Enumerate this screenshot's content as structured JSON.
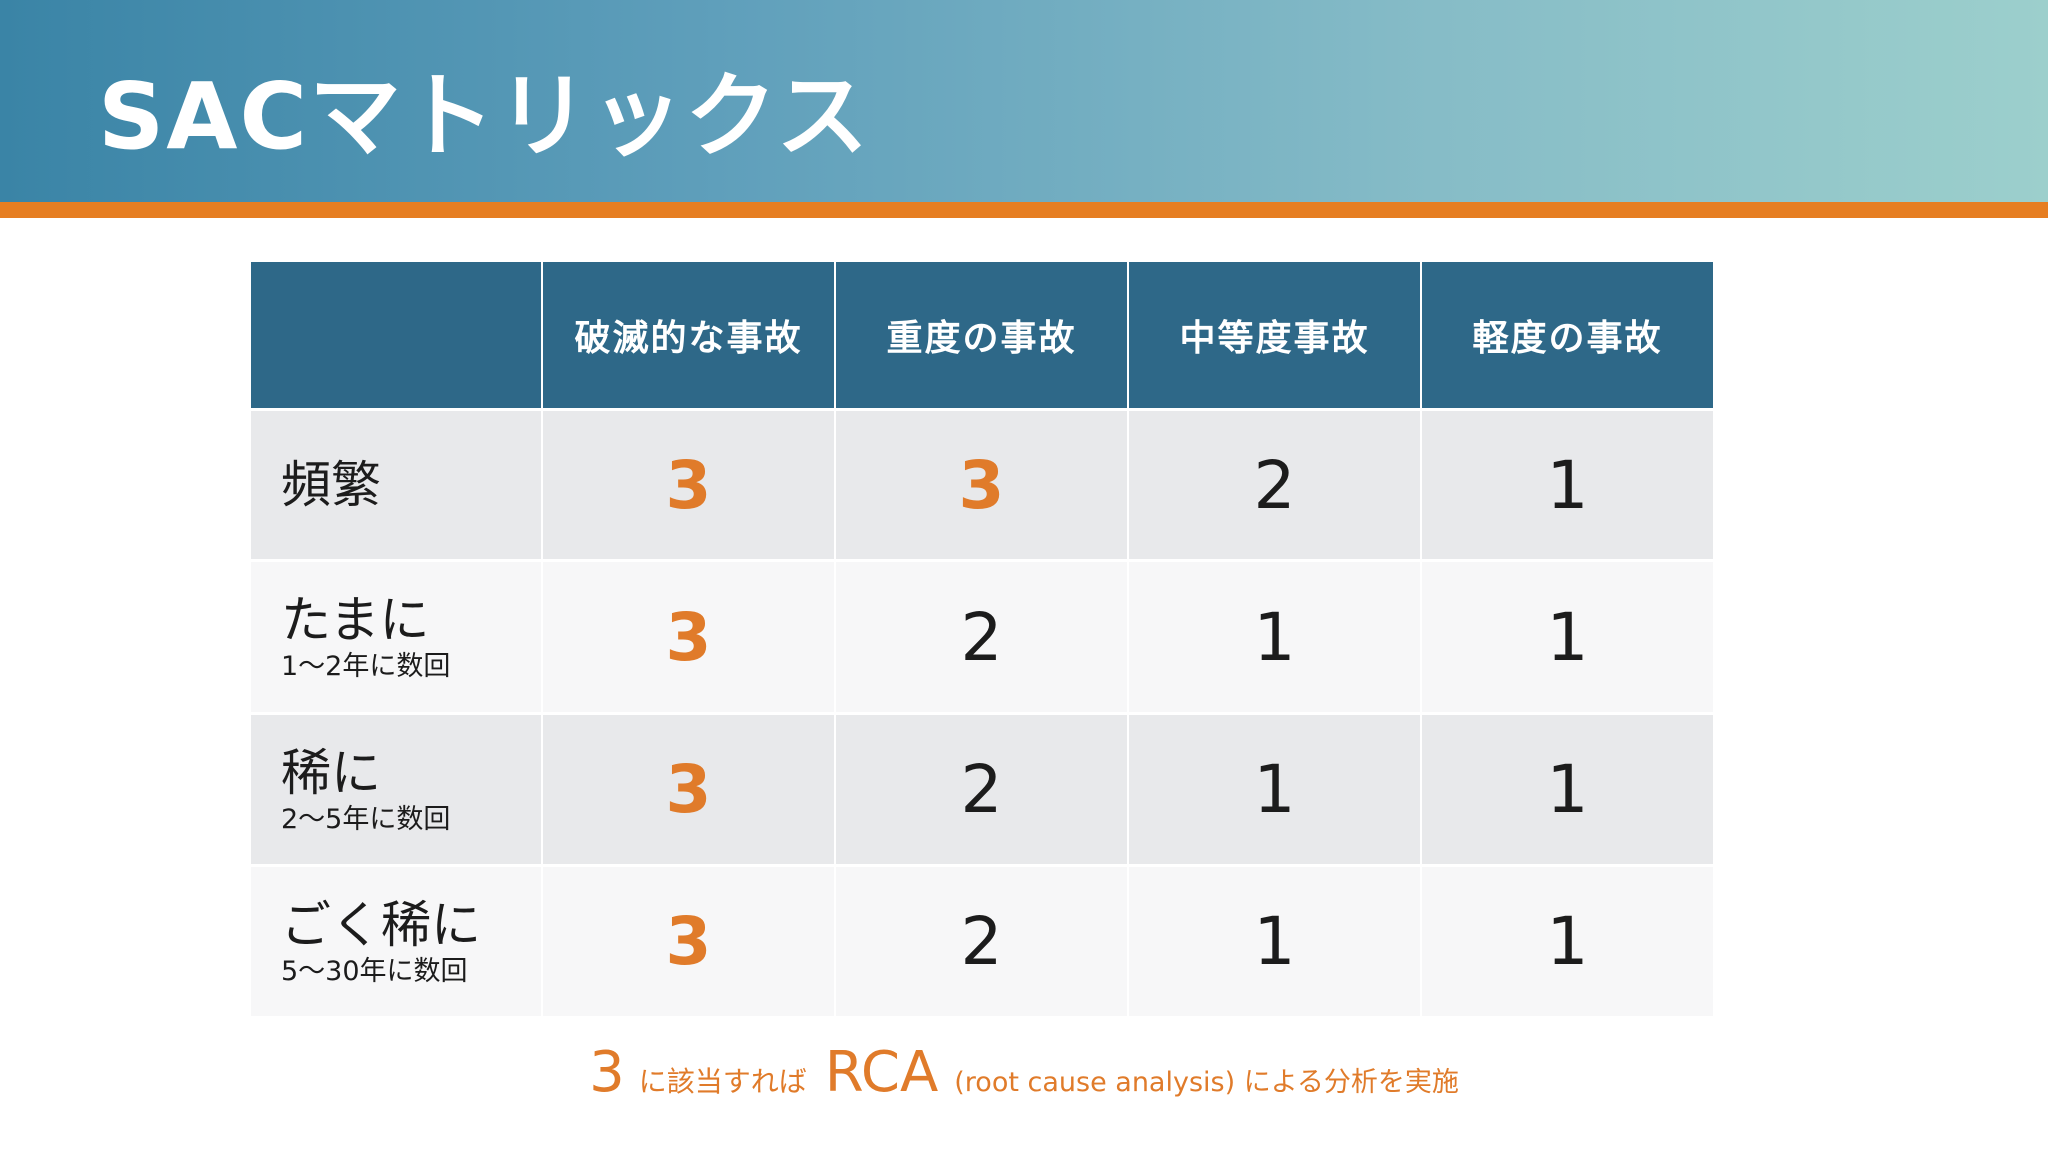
{
  "title": "SACマトリックス",
  "table": {
    "headers": [
      "",
      "破滅的な事故",
      "重度の事故",
      "中等度事故",
      "軽度の事故"
    ],
    "rows": [
      {
        "label": "頻繁",
        "sublabel": "",
        "values": [
          "3",
          "3",
          "2",
          "1"
        ]
      },
      {
        "label": "たまに",
        "sublabel": "1〜2年に数回",
        "values": [
          "3",
          "2",
          "1",
          "1"
        ]
      },
      {
        "label": "稀に",
        "sublabel": "2〜5年に数回",
        "values": [
          "3",
          "2",
          "1",
          "1"
        ]
      },
      {
        "label": "ごく稀に",
        "sublabel": "5〜30年に数回",
        "values": [
          "3",
          "2",
          "1",
          "1"
        ]
      }
    ]
  },
  "footnote": {
    "number": "3",
    "text1": "に該当すれば",
    "rca": "RCA",
    "text2": "(root cause analysis) による分析を実施"
  },
  "colors": {
    "accent": "#e07b2a",
    "header_bg": "#2e6888"
  }
}
